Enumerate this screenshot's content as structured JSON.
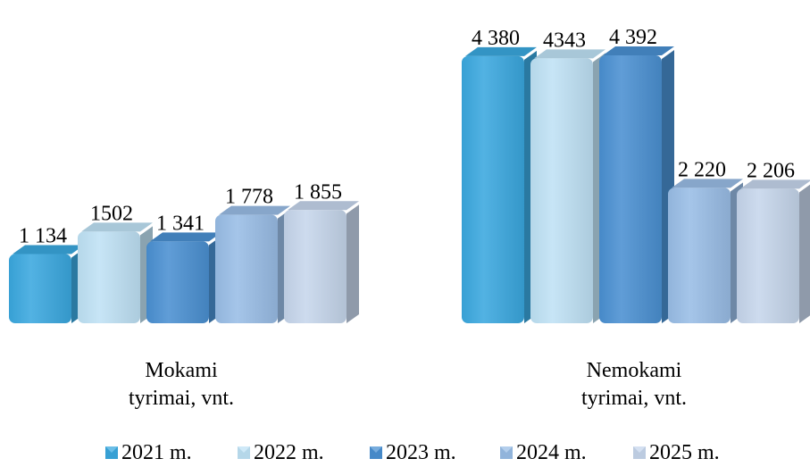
{
  "chart_data": {
    "type": "bar",
    "title": "",
    "xlabel": "",
    "ylabel": "",
    "grid": false,
    "legend_position": "bottom",
    "categories": [
      "Mokami\ntyrimai, vnt.",
      "Nemokami\ntyrimai, vnt."
    ],
    "series": [
      {
        "name": "2021 m.",
        "values": [
          1134,
          4380
        ],
        "labels": [
          "1 134",
          "4 380"
        ],
        "color": "#3aa8df"
      },
      {
        "name": "2022 m.",
        "values": [
          1502,
          4343
        ],
        "labels": [
          "1502",
          "4343"
        ],
        "color": "#bfe2f5"
      },
      {
        "name": "2023 m.",
        "values": [
          1341,
          4392
        ],
        "labels": [
          "1 341",
          "4 392"
        ],
        "color": "#4a90d2"
      },
      {
        "name": "2024 m.",
        "values": [
          1778,
          2220
        ],
        "labels": [
          "1 778",
          "2 220"
        ],
        "color": "#99bde6"
      },
      {
        "name": "2025 m.",
        "values": [
          1855,
          2206
        ],
        "labels": [
          "1 855",
          "2 206"
        ],
        "color": "#c6d6ec"
      }
    ],
    "ylim": [
      0,
      4500
    ]
  }
}
